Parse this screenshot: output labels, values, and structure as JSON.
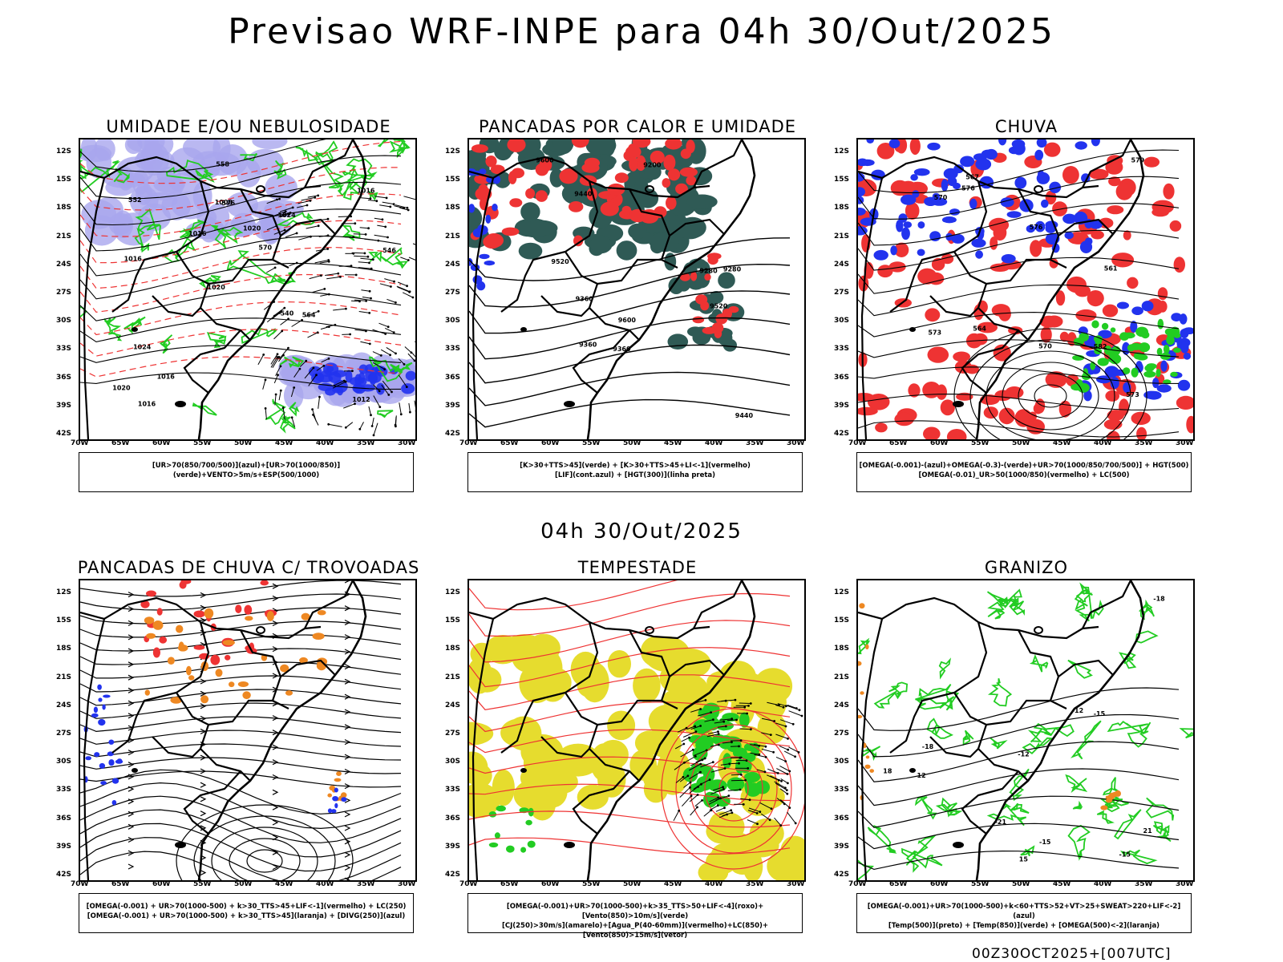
{
  "title": "Previsao WRF-INPE  para 04h 30/Out/2025",
  "subtitle": "04h 30/Out/2025",
  "footer": "00Z30OCT2025+[007UTC]",
  "axes": {
    "lat_labels": [
      "12S",
      "15S",
      "18S",
      "21S",
      "24S",
      "27S",
      "30S",
      "33S",
      "36S",
      "39S",
      "42S"
    ],
    "lon_labels": [
      "70W",
      "65W",
      "60W",
      "55W",
      "50W",
      "45W",
      "40W",
      "35W",
      "30W"
    ]
  },
  "colors": {
    "blue": "#2233ee",
    "green": "#22cc22",
    "red": "#ee3333",
    "orange": "#ee8822",
    "yellow": "#e6dc2e",
    "darkteal": "#2f5a55",
    "lavender": "#a9a6ee",
    "black": "#000000"
  },
  "panels": [
    {
      "title": "UMIDADE E/OU NEBULOSIDADE",
      "legend": [
        "[UR>70(850/700/500)](azul)+[UR>70(1000/850)](verde)+VENTO>5m/s+ESP(500/1000)"
      ],
      "contour_labels": [
        "1012",
        "1016",
        "1016",
        "1020",
        "1024",
        "1016",
        "1008",
        "1020",
        "1024",
        "1016",
        "1020",
        "1016",
        "576",
        "570",
        "564",
        "552",
        "558",
        "546",
        "540"
      ]
    },
    {
      "title": "PANCADAS POR CALOR E UMIDADE",
      "legend": [
        "[K>30+TTS>45](verde) + [K>30+TTS>45+LI<-1](vermelho)",
        "[LIF](cont.azul) + [HGT(300)](linha preta)"
      ],
      "contour_labels": [
        "9600",
        "9520",
        "9600",
        "9520",
        "9440",
        "9440",
        "9360",
        "9360",
        "9360",
        "9280",
        "9280",
        "9200"
      ]
    },
    {
      "title": "CHUVA",
      "legend": [
        "[OMEGA(-0.001)-(azul)+OMEGA(-0.3)-(verde)+UR>70(1000/850/700/500)] + HGT(500)",
        "[OMEGA(-0.01)_UR>50(1000/850)(vermelho) + LC(500)"
      ],
      "contour_labels": [
        "573",
        "576",
        "570",
        "567",
        "564",
        "561",
        "582",
        "579",
        "576",
        "573",
        "570"
      ]
    },
    {
      "title": "PANCADAS DE CHUVA C/ TROVOADAS",
      "legend": [
        "[OMEGA(-0.001) + UR>70(1000-500) + k>30_TTS>45+LIF<-1](vermelho) + LC(250)",
        "[OMEGA(-0.001) + UR>70(1000-500) + k>30_TTS>45](laranja) + [DIVG(250)](azul)"
      ],
      "contour_labels": []
    },
    {
      "title": "TEMPESTADE",
      "legend": [
        "[OMEGA(-0.001)+UR>70(1000-500)+k>35_TTS>50+LIF<-4](roxo)+[Vento(850)>10m/s](verde)",
        "[CJ(250)>30m/s](amarelo)+[Agua_P(40-60mm)](vermelho)+LC(850)+[Vento(850)>15m/s](vetor)"
      ],
      "contour_labels": []
    },
    {
      "title": "GRANIZO",
      "legend": [
        "[OMEGA(-0.001)+UR>70(1000-500)+k<60+TTS>52+VT>25+SWEAT>220+LIF<-2](azul)",
        "[Temp(500)](preto) + [Temp(850)](verde) + [OMEGA(500)<-2](laranja)"
      ],
      "contour_labels": [
        "-12",
        "-15",
        "-18",
        "-21",
        "-15",
        "-18",
        "-15",
        "-12",
        "12",
        "15",
        "18",
        "21"
      ]
    }
  ]
}
